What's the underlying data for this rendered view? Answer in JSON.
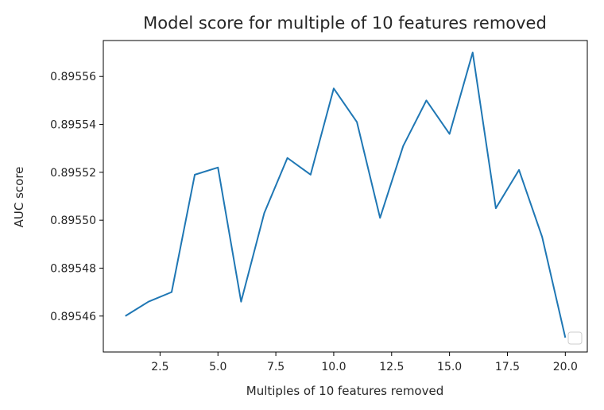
{
  "chart_data": {
    "type": "line",
    "title": "Model score for multiple of 10 features removed",
    "xlabel": "Multiples of 10 features removed",
    "ylabel": "AUC score",
    "xlim": [
      0.05,
      20.95
    ],
    "ylim": [
      0.895445,
      0.895575
    ],
    "x_ticks": [
      2.5,
      5.0,
      7.5,
      10.0,
      12.5,
      15.0,
      17.5,
      20.0
    ],
    "x_tick_labels": [
      "2.5",
      "5.0",
      "7.5",
      "10.0",
      "12.5",
      "15.0",
      "17.5",
      "20.0"
    ],
    "y_ticks": [
      0.89546,
      0.89548,
      0.8955,
      0.89552,
      0.89554,
      0.89556
    ],
    "y_tick_labels": [
      "0.89546",
      "0.89548",
      "0.89550",
      "0.89552",
      "0.89554",
      "0.89556"
    ],
    "grid": false,
    "legend": "lower-right (empty)",
    "series": [
      {
        "color": "#1f77b4",
        "x": [
          1,
          2,
          3,
          4,
          5,
          6,
          7,
          8,
          9,
          10,
          11,
          12,
          13,
          14,
          15,
          16,
          17,
          18,
          19,
          20
        ],
        "values": [
          0.89546,
          0.895466,
          0.89547,
          0.895519,
          0.895522,
          0.895466,
          0.895503,
          0.895526,
          0.895519,
          0.895555,
          0.895541,
          0.895501,
          0.895531,
          0.89555,
          0.895536,
          0.89557,
          0.895505,
          0.895521,
          0.895493,
          0.895451
        ]
      }
    ]
  }
}
